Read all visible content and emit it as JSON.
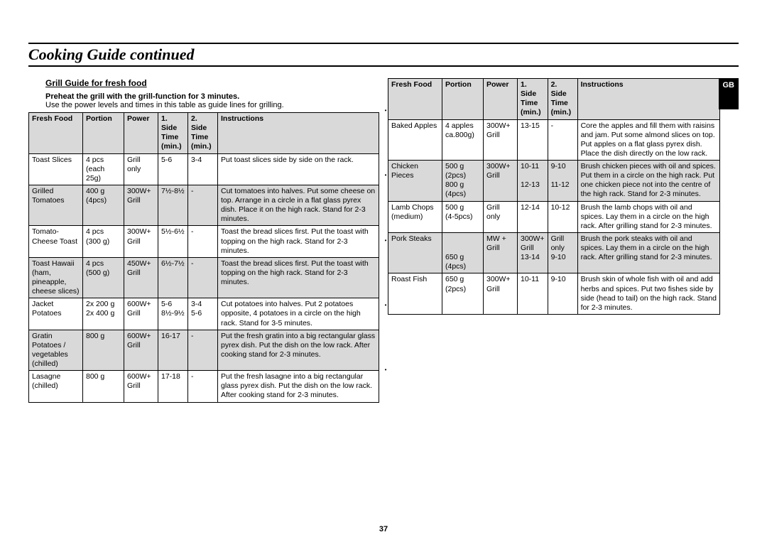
{
  "page_title": "Cooking Guide continued",
  "page_number": "37",
  "gb_label": "GB",
  "section_heading": "Grill Guide for fresh food",
  "preheat_line": "Preheat the grill with the grill-function for 3 minutes.",
  "note_line": "Use the power levels and times in this table as guide lines for grilling.",
  "headers": {
    "food": "Fresh Food",
    "portion": "Portion",
    "power": "Power",
    "t1a": "1. Side",
    "t1b": "Time",
    "t1c": "(min.)",
    "t2a": "2. Side",
    "t2b": "Time",
    "t2c": "(min.)",
    "instr": "Instructions"
  },
  "left_rows": [
    {
      "alt": false,
      "food": "Toast Slices",
      "portion": "4 pcs\n(each 25g)",
      "power": "Grill\nonly",
      "t1": "5-6",
      "t2": "3-4",
      "instr": "Put toast slices side by side on the rack."
    },
    {
      "alt": true,
      "food": "Grilled\nTomatoes",
      "portion": "400 g\n(4pcs)",
      "power": "300W+\nGrill",
      "t1": "7½-8½",
      "t2": "-",
      "instr": "Cut tomatoes into halves. Put some cheese on top. Arrange in a circle in a flat glass pyrex dish. Place it on the high rack. Stand for 2-3 minutes."
    },
    {
      "alt": false,
      "food": "Tomato-\nCheese Toast",
      "portion": "4 pcs\n(300 g)",
      "power": "300W+\nGrill",
      "t1": "5½-6½",
      "t2": "-",
      "instr": "Toast the bread slices first. Put the toast with topping on the high rack. Stand for 2-3 minutes."
    },
    {
      "alt": true,
      "food": "Toast Hawaii\n(ham,\npineapple,\ncheese slices)",
      "portion": "4 pcs\n(500 g)",
      "power": "450W+\nGrill",
      "t1": "6½-7½",
      "t2": "-",
      "instr": "Toast the bread slices first. Put the toast with topping on the high rack. Stand for 2-3 minutes."
    },
    {
      "alt": false,
      "food": "Jacket\nPotatoes",
      "portion": "2x 200 g\n2x 400 g",
      "power": "600W+\nGrill",
      "t1": "5-6\n8½-9½",
      "t2": "3-4\n5-6",
      "instr": "Cut potatoes into halves. Put 2 potatoes opposite, 4 potatoes in a circle on the high rack. Stand for 3-5 minutes."
    },
    {
      "alt": true,
      "food": "Gratin\nPotatoes /\nvegetables\n(chilled)",
      "portion": "800 g",
      "power": "600W+\nGrill",
      "t1": "16-17",
      "t2": "-",
      "instr": "Put the fresh gratin into a big rectangular glass pyrex dish. Put the dish on the low rack. After cooking stand for 2-3 minutes."
    },
    {
      "alt": false,
      "food": "Lasagne\n(chilled)",
      "portion": "800 g",
      "power": "600W+\nGrill",
      "t1": "17-18",
      "t2": "-",
      "instr": "Put the fresh lasagne into a big rectangular glass pyrex dish. Put the dish on the low rack. After cooking stand for 2-3 minutes."
    }
  ],
  "right_rows": [
    {
      "alt": false,
      "food": "Baked Apples",
      "portion": "4 apples\nca.800g)",
      "power": "300W+\nGrill",
      "t1": "13-15",
      "t2": "-",
      "instr": "Core the apples and fill them with raisins and jam. Put some almond slices on top. Put apples on a flat glass pyrex dish. Place the dish directly on the low rack."
    },
    {
      "alt": true,
      "food": "Chicken\nPieces",
      "portion": "500 g\n(2pcs)\n800 g\n(4pcs)",
      "power": "300W+\nGrill",
      "t1": "10-11\n\n12-13",
      "t2": "9-10\n\n11-12",
      "instr": "Brush chicken pieces with oil and spices. Put them in a circle on the high rack. Put one chicken piece not into the centre of the high rack. Stand for 2-3 minutes."
    },
    {
      "alt": false,
      "food": "Lamb Chops\n(medium)",
      "portion": "500 g\n(4-5pcs)",
      "power": "Grill\nonly",
      "t1": "12-14",
      "t2": "10-12",
      "instr": "Brush the lamb chops with oil and spices. Lay them in a circle on the high rack. After grilling stand for 2-3 minutes."
    },
    {
      "alt": true,
      "food": "Pork Steaks",
      "portion": "\n\n650 g\n(4pcs)",
      "power": "MW +\nGrill",
      "t1": "300W+\nGrill\n13-14",
      "t2": "Grill\nonly\n9-10",
      "instr": "Brush the pork steaks with oil and spices. Lay them in a circle on the high rack. After grilling stand for 2-3 minutes."
    },
    {
      "alt": false,
      "food": "Roast Fish",
      "portion": "650 g\n(2pcs)",
      "power": "300W+\nGrill",
      "t1": "10-11",
      "t2": "9-10",
      "instr": "Brush skin of whole fish with oil and add herbs and spices. Put two fishes side by side (head to tail) on the high rack. Stand for 2-3 minutes."
    }
  ],
  "styling": {
    "page_bg": "#ffffff",
    "text_color": "#000000",
    "header_bg": "#d9d9d9",
    "alt_row_bg": "#d9d9d9",
    "border_color": "#000000",
    "title_fontsize": 22,
    "body_fontsize": 11,
    "table_fontsize": 10.5
  }
}
